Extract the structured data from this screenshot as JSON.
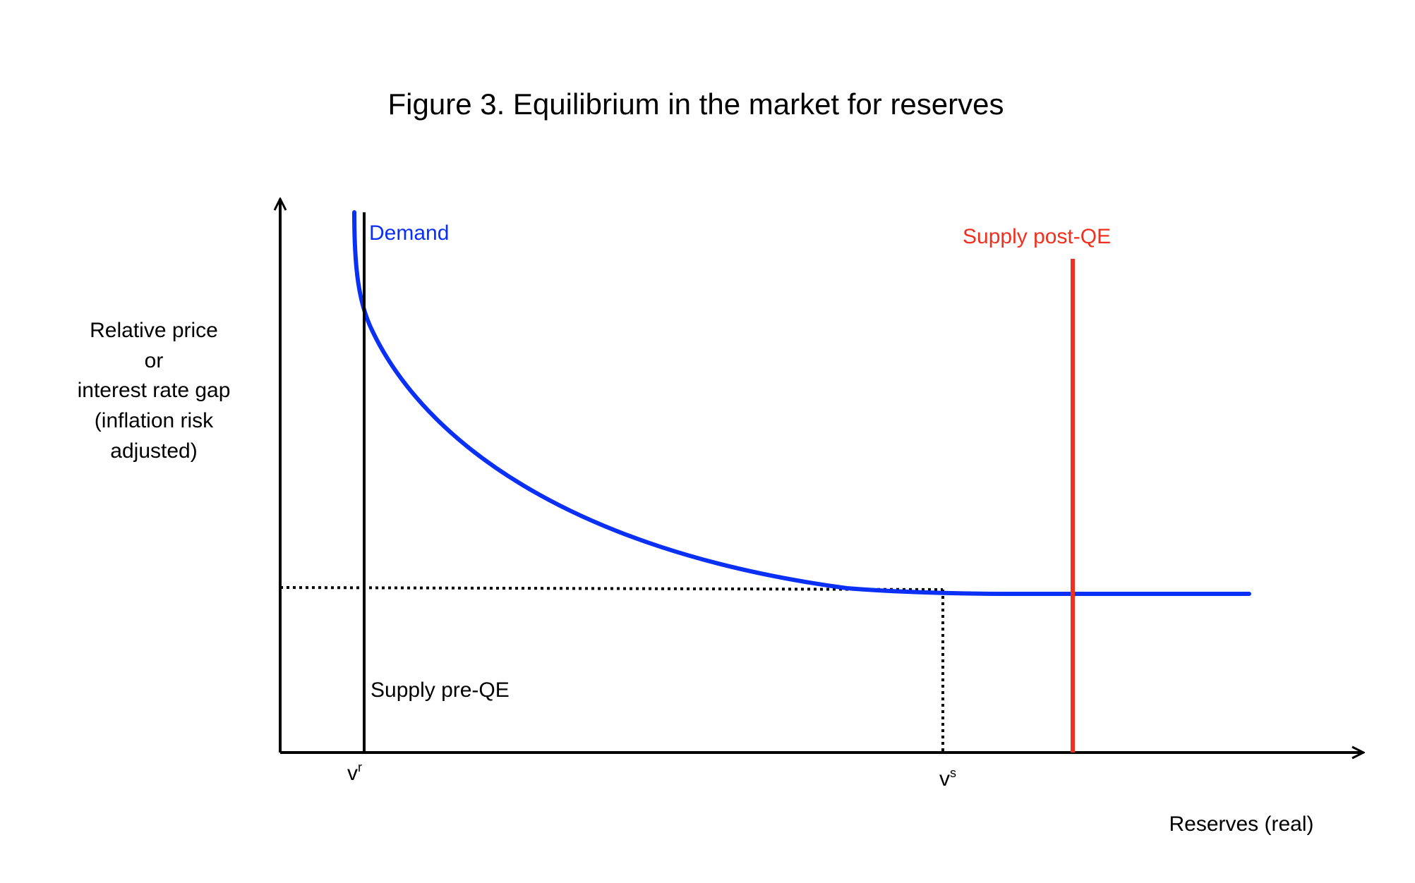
{
  "title": "Figure 3. Equilibrium in the market for reserves",
  "y_axis_label": [
    "Relative price",
    "or",
    "interest rate gap",
    "(inflation risk",
    "adjusted)"
  ],
  "x_axis_label": "Reserves (real)",
  "curves": {
    "demand": "Demand",
    "supply_post_qe": "Supply post-QE",
    "supply_pre_qe": "Supply pre-QE"
  },
  "x_markers": [
    {
      "base": "v",
      "sup": "r"
    },
    {
      "base": "v",
      "sup": "s"
    }
  ]
}
